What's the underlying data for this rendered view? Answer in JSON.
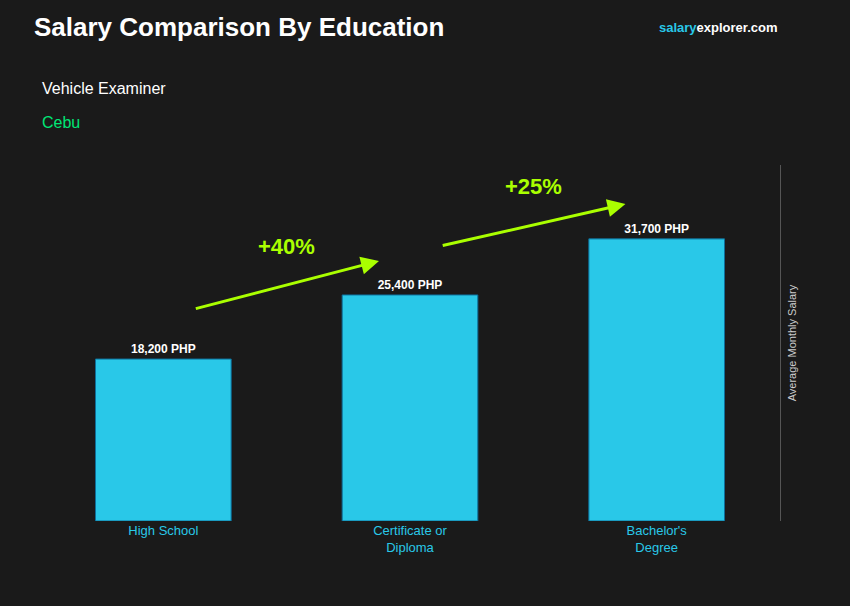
{
  "chart_data": {
    "type": "bar",
    "title": "Salary Comparison By Education",
    "title_color": "#ffffff",
    "subtitle": "Vehicle Examiner",
    "subtitle_color": "#ffffff",
    "location": {
      "text": "Cebu",
      "color": "#00e676"
    },
    "source": [
      {
        "text": "salary",
        "color": "#29c8e8"
      },
      {
        "text": "explorer.com",
        "color": "#ffffff"
      }
    ],
    "ylabel": "Average Monthly Salary",
    "ylabel_color": "#cccccc",
    "categories": [
      "High School",
      "Certificate or\nDiploma",
      "Bachelor's\nDegree"
    ],
    "tick_color": "#29c8e8",
    "values": [
      18200,
      25400,
      31700
    ],
    "value_labels": [
      "18,200 PHP",
      "25,400 PHP",
      "31,700 PHP"
    ],
    "data_labels": true,
    "label_color": "#ffffff",
    "color": "#29c8e8",
    "ylim": [
      0,
      40000
    ],
    "tick_labels": "x",
    "grid": false,
    "annotations": [
      {
        "text": "+40%",
        "from": "High School",
        "to": "Certificate or\nDiploma",
        "color": "#aaff00"
      },
      {
        "text": "+25%",
        "from": "Certificate or\nDiploma",
        "to": "Bachelor's\nDegree",
        "color": "#aaff00"
      }
    ]
  }
}
